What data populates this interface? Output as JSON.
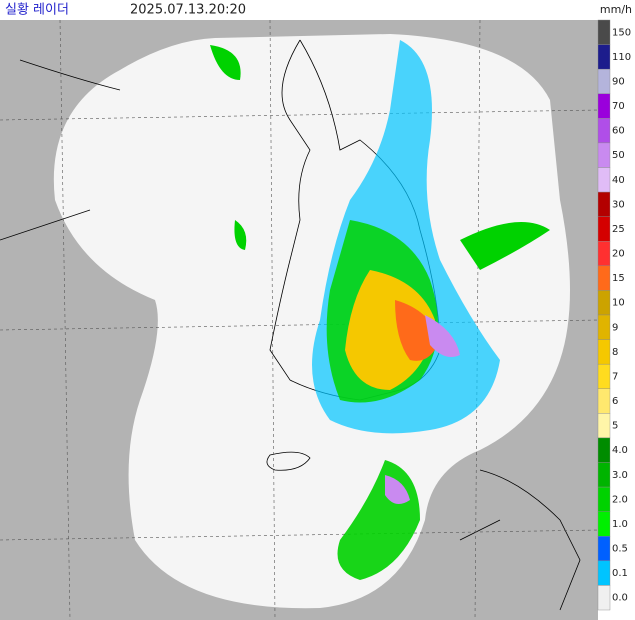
{
  "header": {
    "title": "실황 레이더",
    "time": "2025.07.13.20:20",
    "unit": "mm/h"
  },
  "legend": {
    "items": [
      {
        "label": "150",
        "color": "#4a4a4a"
      },
      {
        "label": "110",
        "color": "#1c1c8c"
      },
      {
        "label": "90",
        "color": "#b4b4dc"
      },
      {
        "label": "70",
        "color": "#9a00dc"
      },
      {
        "label": "60",
        "color": "#b04ee8"
      },
      {
        "label": "50",
        "color": "#c98af0"
      },
      {
        "label": "40",
        "color": "#e0bcf7"
      },
      {
        "label": "30",
        "color": "#b30000"
      },
      {
        "label": "25",
        "color": "#d40000"
      },
      {
        "label": "20",
        "color": "#ff3030"
      },
      {
        "label": "15",
        "color": "#ff6a1a"
      },
      {
        "label": "10",
        "color": "#cca300"
      },
      {
        "label": "9",
        "color": "#e0b400"
      },
      {
        "label": "8",
        "color": "#f5c800"
      },
      {
        "label": "7",
        "color": "#ffdc1f"
      },
      {
        "label": "6",
        "color": "#ffe86e"
      },
      {
        "label": "5",
        "color": "#fff5a8"
      },
      {
        "label": "4.0",
        "color": "#008c00"
      },
      {
        "label": "3.0",
        "color": "#00b400"
      },
      {
        "label": "2.0",
        "color": "#00d200"
      },
      {
        "label": "1.0",
        "color": "#00f000"
      },
      {
        "label": "0.5",
        "color": "#0060ff"
      },
      {
        "label": "0.1",
        "color": "#00c4ff"
      },
      {
        "label": "0.0",
        "color": "#f0f0f0"
      }
    ]
  }
}
